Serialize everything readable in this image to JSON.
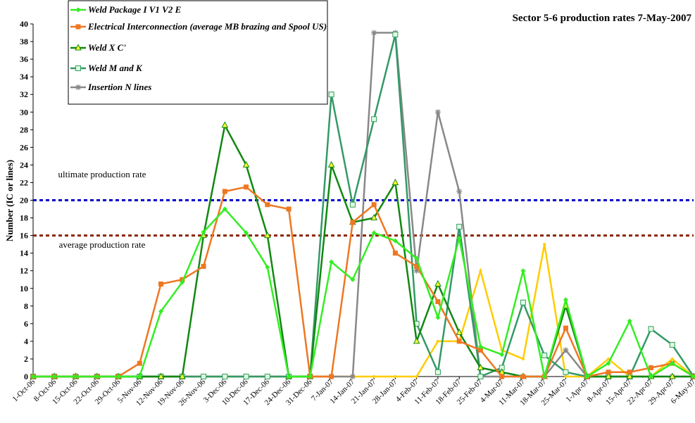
{
  "chart_data": {
    "type": "line",
    "title": "Sector 5-6 production rates 7-May-2007",
    "y_label": "Number (IC or lines)",
    "categories": [
      "1-Oct-06",
      "8-Oct-06",
      "15-Oct-06",
      "22-Oct-06",
      "29-Oct-06",
      "5-Nov-06",
      "12-Nov-06",
      "19-Nov-06",
      "26-Nov-06",
      "3-Dec-06",
      "10-Dec-06",
      "17-Dec-06",
      "24-Dec-06",
      "31-Dec-06",
      "7-Jan-07",
      "14-Jan-07",
      "21-Jan-07",
      "28-Jan-07",
      "4-Feb-07",
      "11-Feb-07",
      "18-Feb-07",
      "25-Feb-07",
      "4-Mar-07",
      "11-Mar-07",
      "18-Mar-07",
      "25-Mar-07",
      "1-Apr-07",
      "8-Apr-07",
      "15-Apr-07",
      "22-Apr-07",
      "29-Apr-07",
      "6-May-07"
    ],
    "series": [
      {
        "name": "Weld Package I V1 V2  E",
        "color": "#33ee22",
        "marker": "diamond",
        "values": [
          0,
          0,
          0,
          0,
          0,
          0,
          7.4,
          10.7,
          16.4,
          19,
          16.3,
          12.4,
          0,
          0,
          13,
          11,
          16.3,
          15.4,
          13.4,
          6.7,
          15.7,
          3.4,
          2.5,
          12,
          0,
          8.7,
          0,
          1.5,
          6.3,
          0,
          1.5,
          0
        ]
      },
      {
        "name": "Electrical Interconnection (average MB brazing and Spool US)",
        "color": "#ee7722",
        "marker": "square",
        "values": [
          0,
          0,
          0,
          0,
          0,
          1.5,
          10.5,
          11,
          12.5,
          21,
          21.5,
          19.5,
          19,
          0,
          0,
          17.5,
          19.5,
          14,
          12.5,
          8.5,
          4,
          3,
          0,
          0,
          0,
          5.5,
          0,
          0.5,
          0.5,
          1,
          1.5,
          0
        ]
      },
      {
        "name": "Weld  X C'",
        "color": "#118811",
        "marker": "triangle",
        "values": [
          0,
          0,
          0,
          0,
          0,
          0,
          0,
          0,
          16,
          28.5,
          24,
          16,
          0,
          0,
          24,
          17.5,
          18,
          22,
          4,
          10.5,
          5,
          1,
          0.5,
          0,
          0,
          8,
          0,
          0,
          0,
          0,
          0,
          0
        ]
      },
      {
        "name": "Weld M and K",
        "color": "#339966",
        "marker": "hollow-square",
        "values": [
          0,
          0,
          0,
          0,
          0,
          0,
          0,
          0,
          0,
          0,
          0,
          0,
          0,
          0,
          32,
          19.5,
          29.2,
          38.8,
          6,
          0.5,
          17,
          0,
          1,
          8.4,
          2.4,
          0.5,
          0,
          0,
          0,
          5.4,
          3.6,
          0
        ]
      },
      {
        "name": "Insertion N lines",
        "color": "#888888",
        "marker": "star",
        "values": [
          0,
          0,
          0,
          0,
          0,
          0,
          0,
          0,
          0,
          0,
          0,
          0,
          0,
          0,
          0,
          0,
          39,
          39,
          12,
          30,
          21,
          0,
          0,
          0,
          0,
          3,
          0,
          0,
          0,
          0,
          0,
          0
        ]
      },
      {
        "color": "#ffcc00",
        "marker": "dot",
        "values": [
          0,
          0,
          0,
          0,
          0,
          0,
          0,
          0,
          0,
          0,
          0,
          0,
          0,
          0,
          0,
          0,
          0,
          0,
          0,
          4,
          4,
          12,
          3,
          2,
          15,
          0,
          0,
          2,
          0,
          0,
          2,
          0
        ]
      }
    ],
    "reference_lines": [
      {
        "value": 20,
        "label": "ultimate production rate",
        "color": "#0000cc"
      },
      {
        "value": 16,
        "label": "average production rate",
        "color": "#8b2500"
      }
    ],
    "ylim": [
      0,
      40
    ],
    "yticks": [
      0,
      2,
      4,
      6,
      8,
      10,
      12,
      14,
      16,
      18,
      20,
      22,
      24,
      26,
      28,
      30,
      32,
      34,
      36,
      38,
      40
    ],
    "grid": false,
    "legend": "top-left"
  }
}
